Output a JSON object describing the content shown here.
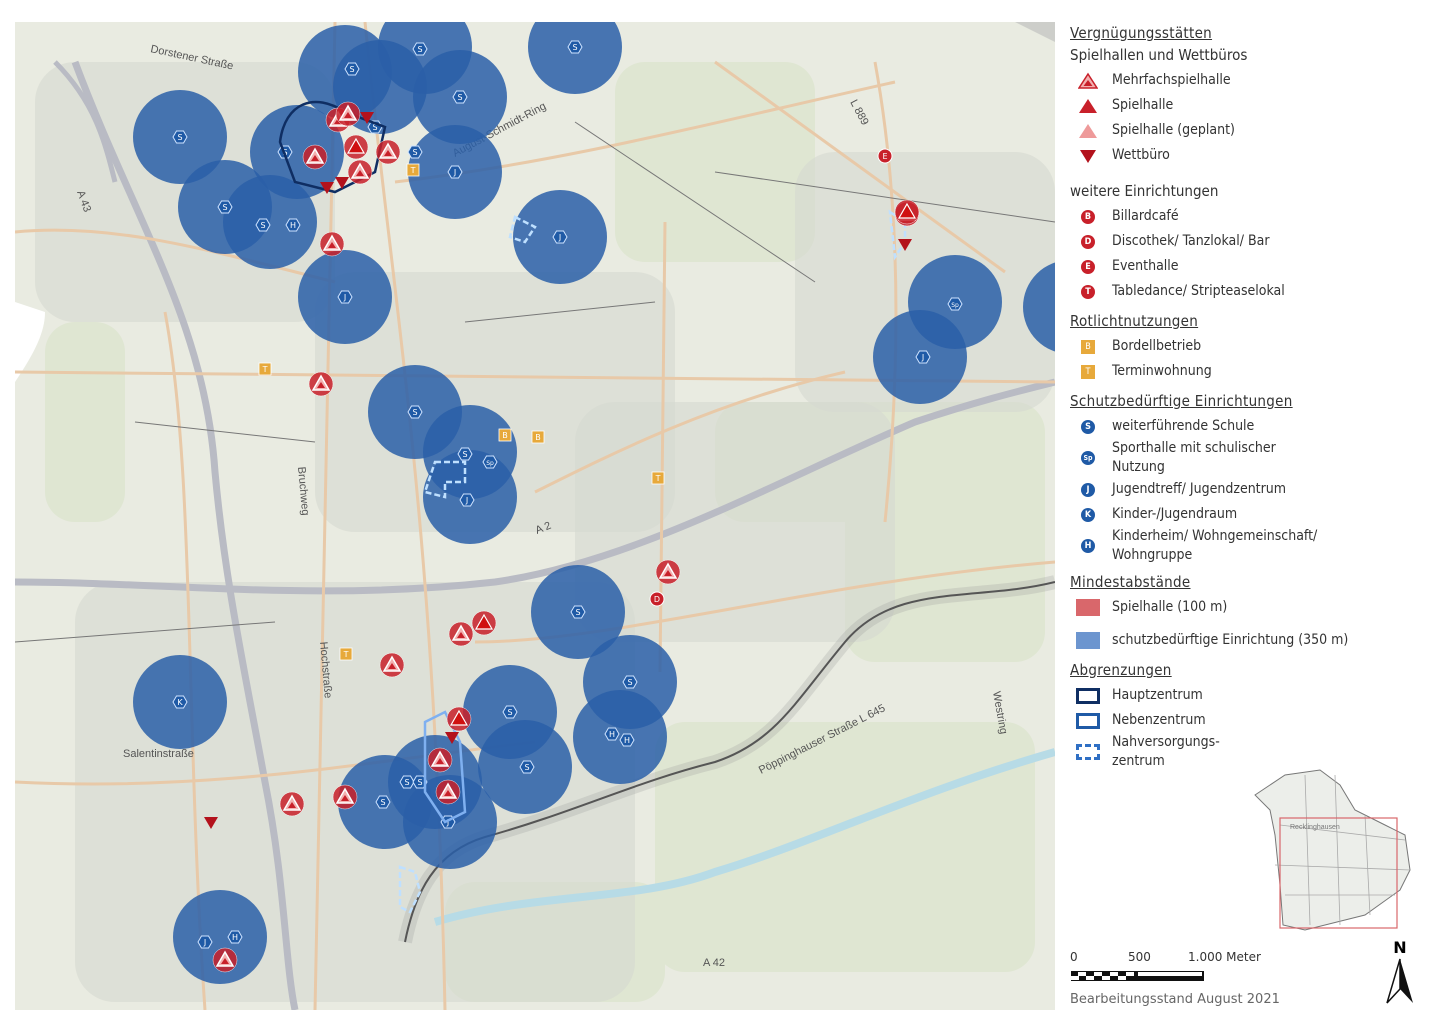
{
  "map": {
    "street_labels": {
      "dorstener": "Dorstener Straße",
      "august": "August-Schmidt-Ring",
      "bruchweg": "Bruchweg",
      "hochstrasse": "Hochstraße",
      "salentin": "Salentinstraße",
      "poppinghauser": "Pöppinghauser Straße L 645",
      "westring": "Westring",
      "a43": "A 43",
      "a42": "A 42",
      "a2": "A 2",
      "l889": "L 889"
    },
    "colors": {
      "buffer_blue": "#2a5fa8",
      "spielhalle_red": "#c8202a",
      "rotlicht_orange": "#e7a93b",
      "background": "#e9ebe1"
    }
  },
  "legend": {
    "title": "Vergnügungsstätten",
    "spielhallen": {
      "heading": "Spielhallen und Wettbüros",
      "items": [
        "Mehrfachspielhalle",
        "Spielhalle",
        "Spielhalle (geplant)",
        "Wettbüro"
      ]
    },
    "weitere": {
      "heading": "weitere Einrichtungen",
      "items": [
        {
          "code": "B",
          "label": "Billardcafé"
        },
        {
          "code": "D",
          "label": "Discothek/ Tanzlokal/ Bar"
        },
        {
          "code": "E",
          "label": "Eventhalle"
        },
        {
          "code": "T",
          "label": "Tabledance/ Stripteaselokal"
        }
      ]
    },
    "rotlicht": {
      "heading": "Rotlichtnutzungen",
      "items": [
        {
          "code": "B",
          "label": "Bordellbetrieb"
        },
        {
          "code": "T",
          "label": "Terminwohnung"
        }
      ]
    },
    "schutz": {
      "heading": "Schutzbedürftige Einrichtungen",
      "items": [
        {
          "code": "S",
          "label": "weiterführende Schule"
        },
        {
          "code": "Sp",
          "label": "Sporthalle mit schulischer Nutzung"
        },
        {
          "code": "J",
          "label": "Jugendtreff/ Jugendzentrum"
        },
        {
          "code": "K",
          "label": "Kinder-/Jugendraum"
        },
        {
          "code": "H",
          "label": "Kinderheim/ Wohngemeinschaft/ Wohngruppe"
        }
      ]
    },
    "abstaende": {
      "heading": "Mindestabstände",
      "items": [
        "Spielhalle (100 m)",
        "schutzbedürftige Einrichtung (350 m)"
      ]
    },
    "abgrenzungen": {
      "heading": "Abgrenzungen",
      "items": [
        "Hauptzentrum",
        "Nebenzentrum",
        "Nahversorgungs-zentrum"
      ]
    },
    "inset_label": "Recklinghausen",
    "scale": {
      "t0": "0",
      "t1": "500",
      "t2": "1.000 Meter"
    },
    "north": "N",
    "status": "Bearbeitungsstand August 2021"
  }
}
